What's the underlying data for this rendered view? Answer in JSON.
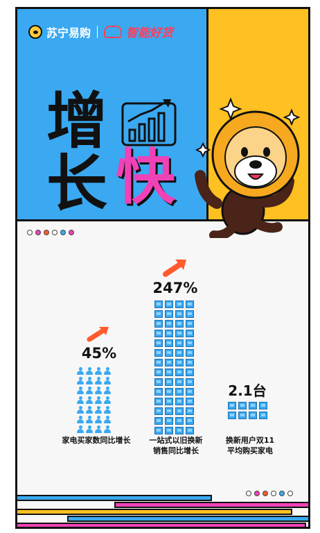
{
  "brand": {
    "suning": "苏宁易购",
    "zhi": "智能好货"
  },
  "headline": {
    "c1": "增",
    "c2": "长",
    "c3": "快"
  },
  "stats": [
    {
      "value": "45%",
      "label_l1": "家电买家数同比增长",
      "label_l2": ""
    },
    {
      "value": "247%",
      "label_l1": "一站式以旧换新",
      "label_l2": "销售同比增长"
    },
    {
      "value": "2.1台",
      "label_l1": "换新用户双11",
      "label_l2": "平均购买家电"
    }
  ],
  "colors": {
    "blue": "#3aa9f2",
    "yellow": "#ffc021",
    "pink": "#f042b7",
    "red": "#ff3d5a",
    "orange": "#ff5b2e"
  },
  "icons": [
    "sun-logo-icon",
    "zhi-logo-icon",
    "rising-bars-icon",
    "lion-mascot-icon",
    "person-icon",
    "tv-icon",
    "trend-arrow-icon"
  ]
}
